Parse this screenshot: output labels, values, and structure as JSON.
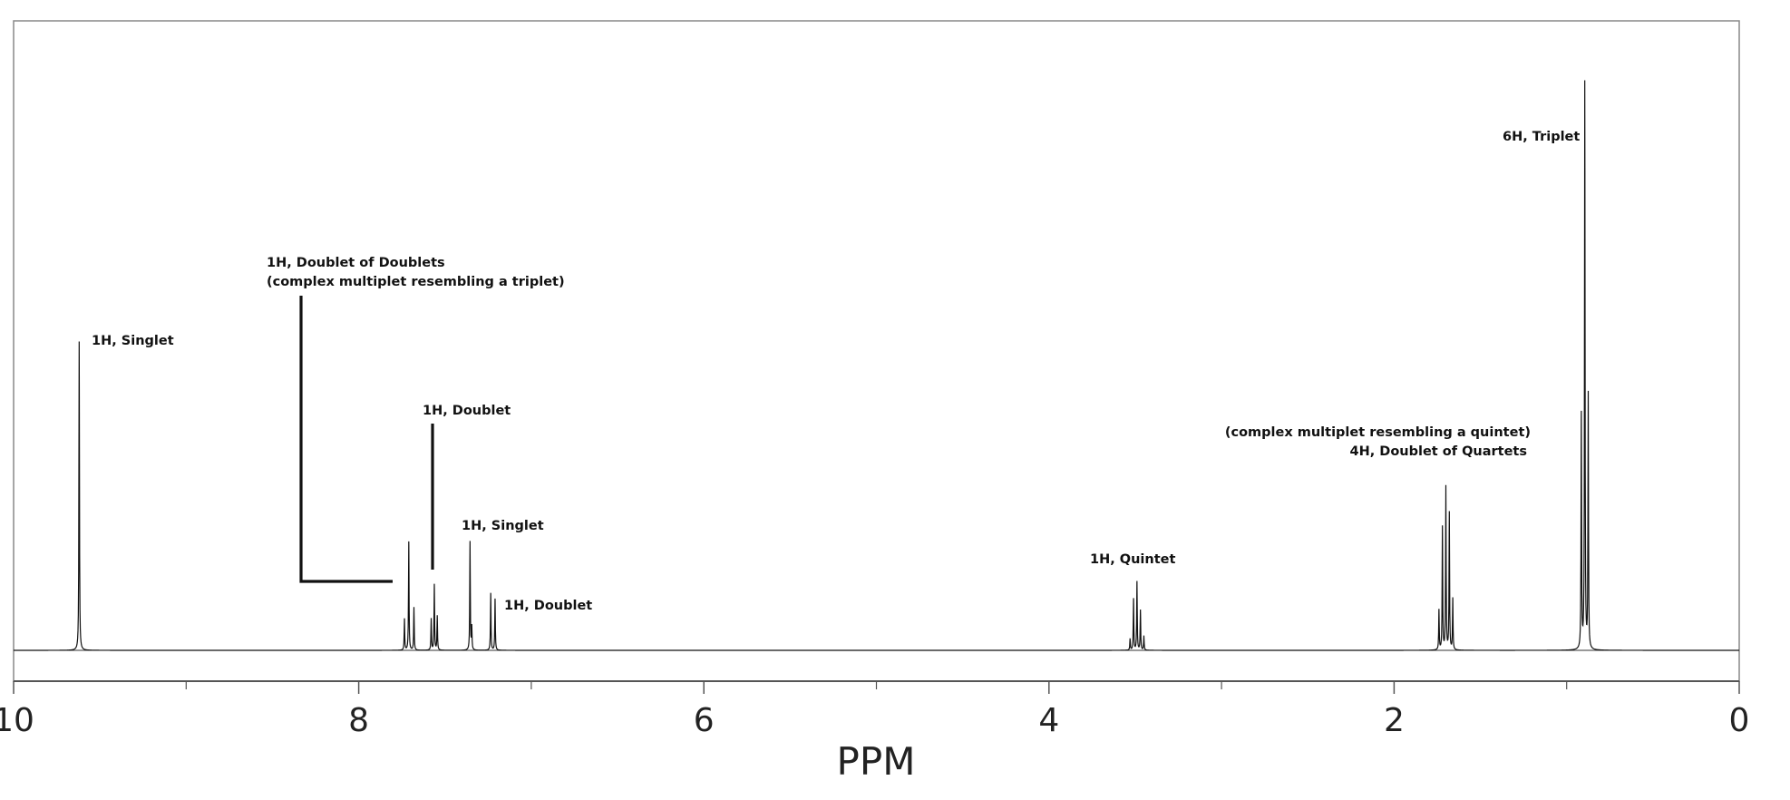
{
  "chart_data": {
    "type": "line",
    "title": "",
    "xlabel": "PPM",
    "ylabel": "",
    "xlim": [
      10,
      0
    ],
    "x_reversed": true,
    "x_ticks_major": [
      10,
      8,
      6,
      4,
      2,
      0
    ],
    "x_ticks_minor": [
      9,
      7,
      5,
      3,
      1
    ],
    "x_tick_labels": [
      "10",
      "8",
      "6",
      "4",
      "2",
      "0"
    ],
    "ylim": [
      0,
      1.05
    ],
    "grid": false,
    "legend": "none",
    "series": [
      {
        "peaks": [
          {
            "ppm": 9.62,
            "height": 0.54
          },
          {
            "ppm": 7.735,
            "height": 0.055
          },
          {
            "ppm": 7.71,
            "height": 0.19
          },
          {
            "ppm": 7.68,
            "height": 0.075
          },
          {
            "ppm": 7.58,
            "height": 0.055
          },
          {
            "ppm": 7.562,
            "height": 0.115
          },
          {
            "ppm": 7.545,
            "height": 0.06
          },
          {
            "ppm": 7.355,
            "height": 0.19
          },
          {
            "ppm": 7.345,
            "height": 0.04
          },
          {
            "ppm": 7.235,
            "height": 0.1
          },
          {
            "ppm": 7.21,
            "height": 0.09
          },
          {
            "ppm": 3.53,
            "height": 0.02
          },
          {
            "ppm": 3.51,
            "height": 0.09
          },
          {
            "ppm": 3.49,
            "height": 0.12
          },
          {
            "ppm": 3.47,
            "height": 0.07
          },
          {
            "ppm": 3.45,
            "height": 0.025
          },
          {
            "ppm": 1.74,
            "height": 0.07
          },
          {
            "ppm": 1.72,
            "height": 0.215
          },
          {
            "ppm": 1.7,
            "height": 0.285
          },
          {
            "ppm": 1.68,
            "height": 0.24
          },
          {
            "ppm": 1.66,
            "height": 0.09
          },
          {
            "ppm": 0.915,
            "height": 0.41
          },
          {
            "ppm": 0.895,
            "height": 0.99
          },
          {
            "ppm": 0.875,
            "height": 0.445
          }
        ]
      }
    ],
    "annotations": [
      {
        "text": "1H, Singlet",
        "ppm": 9.62
      },
      {
        "text": "1H, Doublet of Doublets",
        "ppm": 7.71
      },
      {
        "text": "(complex multiplet resembling a triplet)",
        "ppm": 7.71
      },
      {
        "text": "1H, Doublet",
        "ppm": 7.56
      },
      {
        "text": "1H, Singlet",
        "ppm": 7.35
      },
      {
        "text": "1H, Doublet",
        "ppm": 7.22
      },
      {
        "text": "1H, Quintet",
        "ppm": 3.49
      },
      {
        "text": "(complex multiplet resembling a quintet)",
        "ppm": 1.7
      },
      {
        "text": "4H, Doublet of Quartets",
        "ppm": 1.7
      },
      {
        "text": "6H, Triplet",
        "ppm": 0.895
      }
    ]
  }
}
